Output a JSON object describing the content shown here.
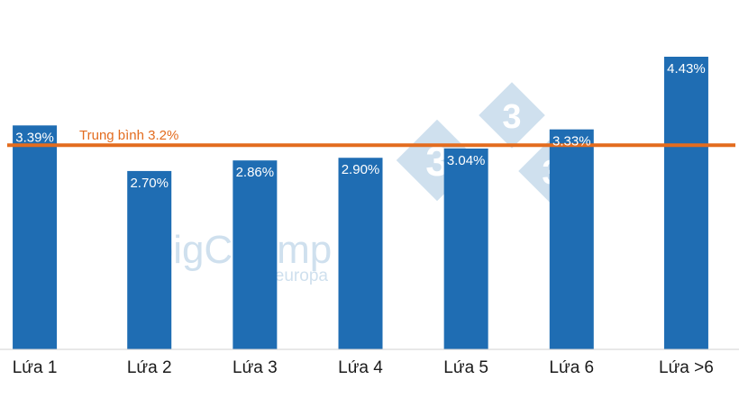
{
  "chart_data": {
    "type": "bar",
    "categories": [
      "Lứa 1",
      "Lứa 2",
      "Lứa 3",
      "Lứa 4",
      "Lứa 5",
      "Lứa 6",
      "Lứa >6"
    ],
    "values": [
      3.39,
      2.7,
      2.86,
      2.9,
      3.04,
      3.33,
      4.43
    ],
    "value_labels": [
      "3.39%",
      "2.70%",
      "2.86%",
      "2.90%",
      "3.04%",
      "3.33%",
      "4.43%"
    ],
    "ylim": [
      0,
      4.6
    ],
    "grid": false,
    "reference_line": {
      "value": 3.2,
      "label": "Trung bình 3.2%",
      "color": "#e36c1f"
    },
    "bar_color": "#1f6db3"
  },
  "watermark": {
    "logo_text": "pigChamp",
    "logo_subtext": "pro europa",
    "badge_digits": [
      "3",
      "3",
      "3"
    ]
  }
}
